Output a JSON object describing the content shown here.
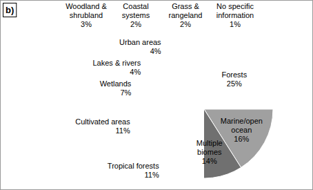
{
  "chart_data": {
    "type": "pie",
    "title": "b)",
    "categories": [
      "Forests",
      "Marine/open ocean",
      "Multiple biomes",
      "Tropical forests",
      "Cultivated areas",
      "Wetlands",
      "Lakes & rivers",
      "Urban areas",
      "Woodland & shrubland",
      "Coastal systems",
      "Grass & rangeland",
      "No specific information"
    ],
    "values": [
      25,
      16,
      14,
      11,
      11,
      7,
      4,
      4,
      3,
      2,
      2,
      1
    ],
    "value_labels": [
      "25%",
      "16%",
      "14%",
      "11%",
      "11%",
      "7%",
      "4%",
      "4%",
      "3%",
      "2%",
      "2%",
      "1%"
    ],
    "colors": [
      "#5a5a5a",
      "#a0a0a0",
      "#707070",
      "#3c3c3c",
      "#8c8c8c",
      "#c2c2c2",
      "#6a6a6a",
      "#d0d0d0",
      "#4a4a4a",
      "#5e5e5e",
      "#b0b0b0",
      "#e2e2e2"
    ],
    "data_labels": true
  }
}
